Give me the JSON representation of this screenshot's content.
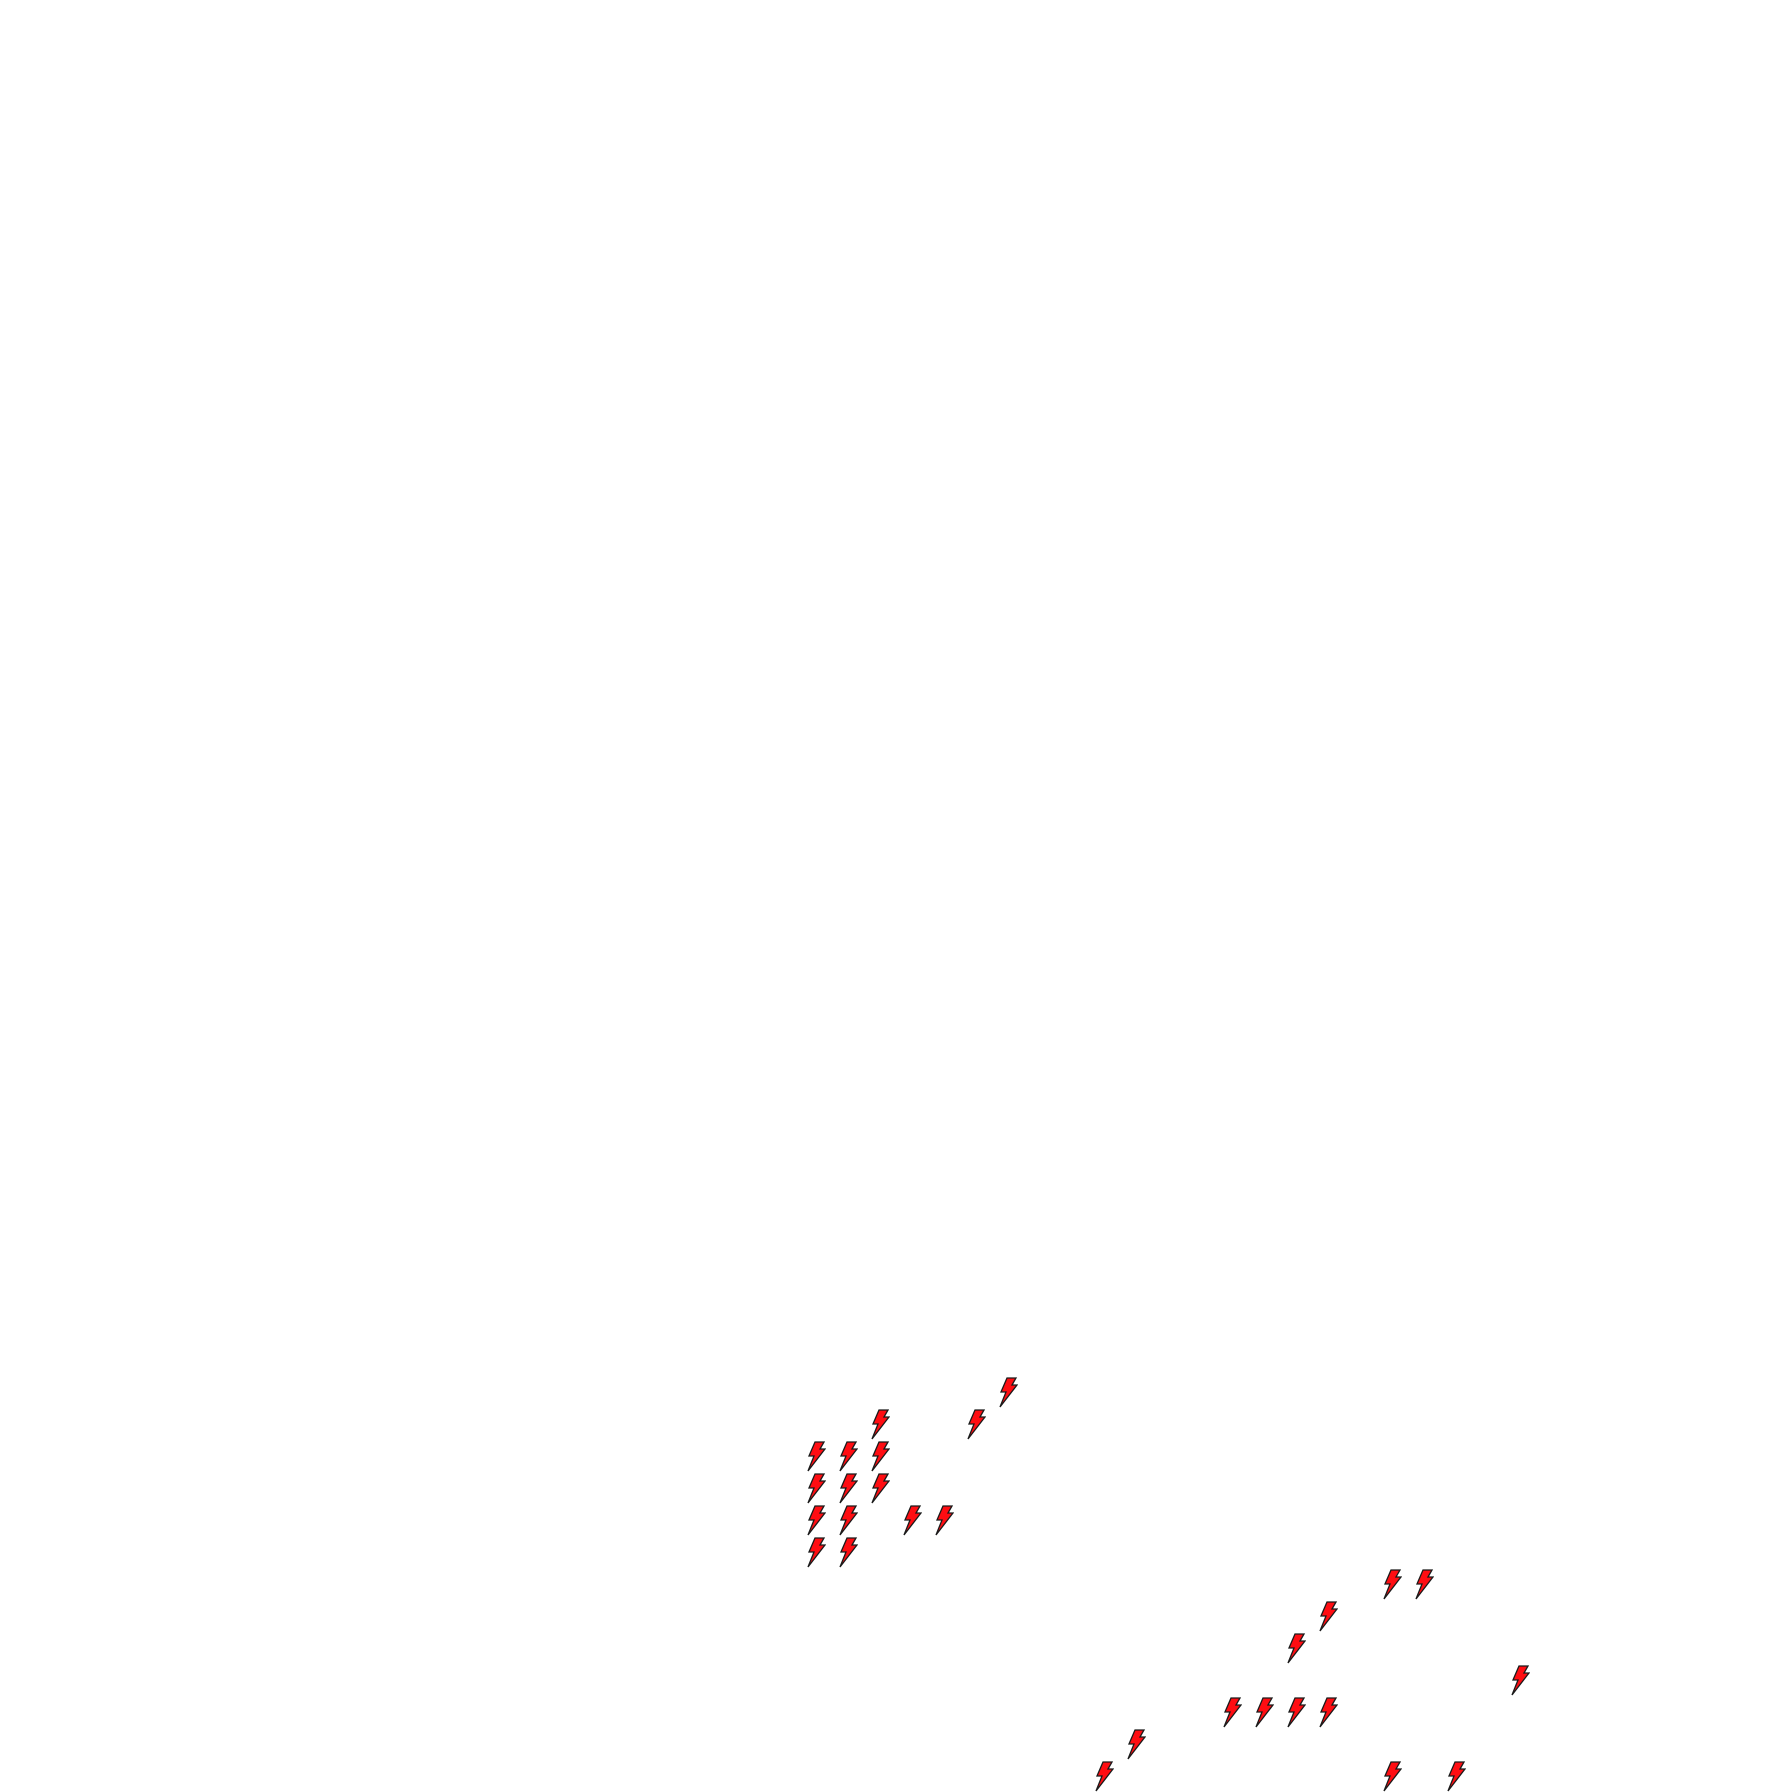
{
  "map": {
    "marker_icon": "lightning-bolt-icon",
    "marker_fill": "#ff0d12",
    "marker_stroke": "#1a1a1a",
    "marker_count": 29
  }
}
